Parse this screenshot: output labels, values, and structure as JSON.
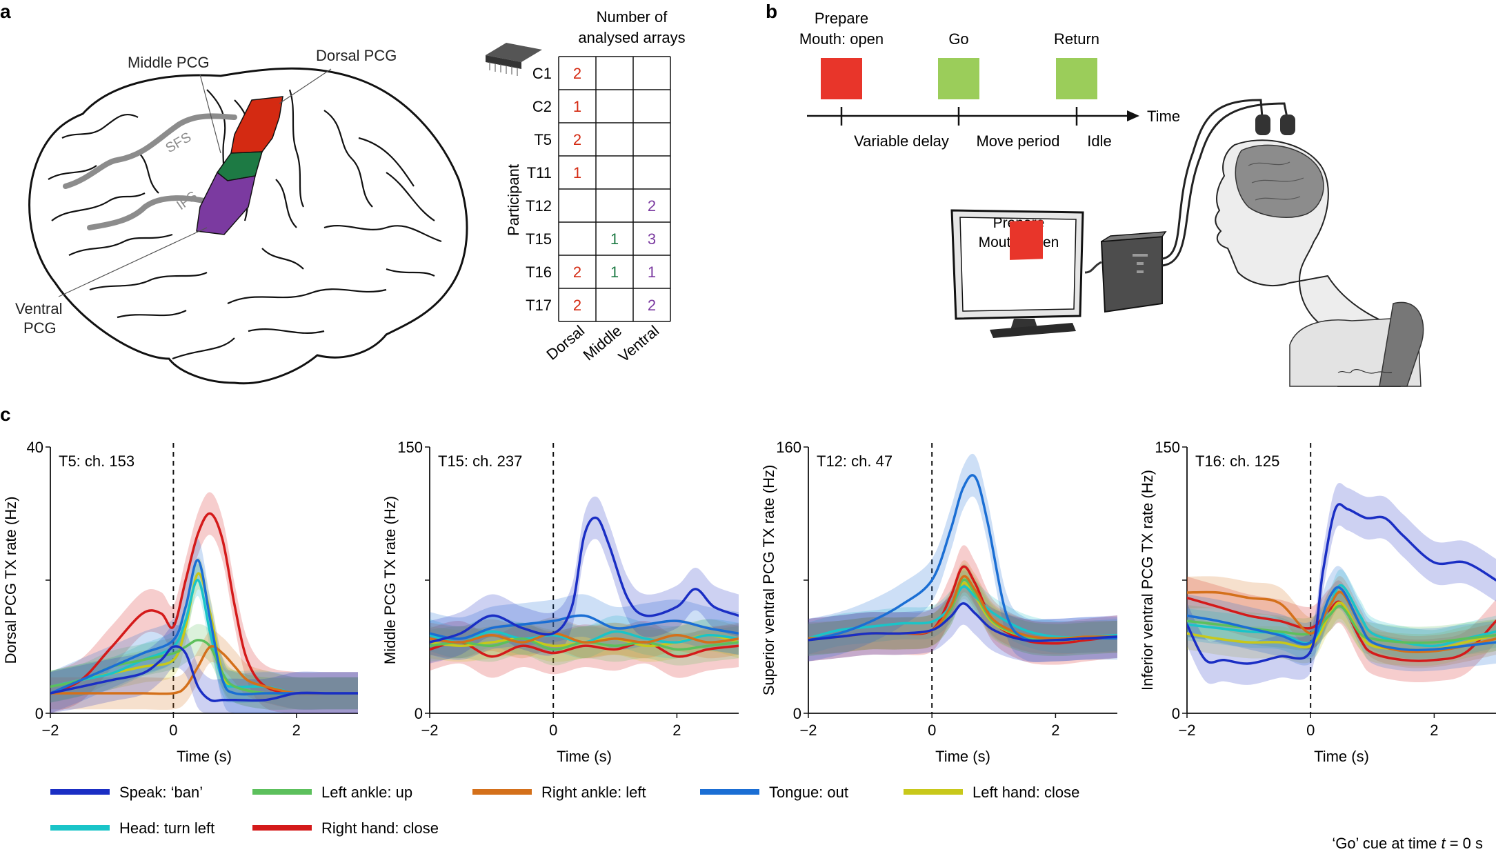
{
  "panel_letters": {
    "a": "a",
    "b": "b",
    "c": "c"
  },
  "brain": {
    "labels": {
      "middle_pcg": "Middle PCG",
      "dorsal_pcg": "Dorsal PCG",
      "sfs": "SFS",
      "ifs": "IFS",
      "ventral_pcg_line1": "Ventral",
      "ventral_pcg_line2": "PCG"
    },
    "colors": {
      "dorsal": "#d42a12",
      "middle": "#1d7a44",
      "ventral": "#7b3aa0"
    }
  },
  "arrays_table": {
    "title_line1": "Number of",
    "title_line2": "analysed arrays",
    "row_axis_label": "Participant",
    "columns": [
      "Dorsal",
      "Middle",
      "Ventral"
    ],
    "rows": [
      {
        "participant": "C1",
        "dorsal": "2",
        "middle": "",
        "ventral": ""
      },
      {
        "participant": "C2",
        "dorsal": "1",
        "middle": "",
        "ventral": ""
      },
      {
        "participant": "T5",
        "dorsal": "2",
        "middle": "",
        "ventral": ""
      },
      {
        "participant": "T11",
        "dorsal": "1",
        "middle": "",
        "ventral": ""
      },
      {
        "participant": "T12",
        "dorsal": "",
        "middle": "",
        "ventral": "2"
      },
      {
        "participant": "T15",
        "dorsal": "",
        "middle": "1",
        "ventral": "3"
      },
      {
        "participant": "T16",
        "dorsal": "2",
        "middle": "1",
        "ventral": "1"
      },
      {
        "participant": "T17",
        "dorsal": "2",
        "middle": "",
        "ventral": "2"
      }
    ]
  },
  "task": {
    "prepare_line1": "Prepare",
    "prepare_line2": "Mouth: open",
    "go": "Go",
    "return": "Return",
    "time": "Time",
    "variable_delay": "Variable delay",
    "move_period": "Move period",
    "idle": "Idle",
    "screen_line1": "Prepare",
    "screen_line2": "Mouth: open",
    "signature": "E.W.",
    "prepare_color": "#e8352a",
    "go_color": "#9bcd5a"
  },
  "chart_data": [
    {
      "type": "line",
      "title": "T5: ch. 153",
      "xlabel": "Time (s)",
      "ylabel": "Dorsal PCG TX rate (Hz)",
      "xlim": [
        -2,
        3
      ],
      "ylim": [
        0,
        40
      ],
      "xticks": [
        -2,
        0,
        2
      ],
      "yticks": [
        0,
        20,
        40
      ],
      "ytick_labels": [
        "0",
        "",
        "40"
      ],
      "series": [
        {
          "name": "Speak: ‘ban’",
          "x": [
            -2,
            -1.5,
            -1,
            -0.5,
            -0.2,
            0,
            0.2,
            0.4,
            0.6,
            0.8,
            1,
            1.5,
            2,
            2.5,
            3
          ],
          "y": [
            3,
            4,
            5,
            6,
            8,
            10,
            9,
            4,
            2,
            2,
            2,
            2,
            3,
            3,
            3
          ]
        },
        {
          "name": "Left ankle: up",
          "x": [
            -2,
            -1.5,
            -1,
            -0.5,
            0,
            0.2,
            0.4,
            0.6,
            0.8,
            1,
            1.5,
            2,
            2.5,
            3
          ],
          "y": [
            4,
            5,
            7,
            8,
            9,
            10,
            11,
            10,
            6,
            4,
            3,
            3,
            3,
            3
          ]
        },
        {
          "name": "Right ankle: left",
          "x": [
            -2,
            -1.5,
            -1,
            -0.5,
            0,
            0.2,
            0.4,
            0.6,
            0.8,
            1,
            1.2,
            1.5,
            2,
            2.5,
            3
          ],
          "y": [
            3,
            3,
            3,
            3,
            3,
            4,
            7,
            10,
            9,
            7,
            5,
            4,
            3,
            3,
            3
          ]
        },
        {
          "name": "Tongue: out",
          "x": [
            -2,
            -1.5,
            -1,
            -0.5,
            0,
            0.2,
            0.4,
            0.6,
            0.8,
            1,
            1.5,
            2,
            2.5,
            3
          ],
          "y": [
            3,
            5,
            7,
            9,
            11,
            16,
            23,
            14,
            5,
            3,
            3,
            3,
            3,
            3
          ]
        },
        {
          "name": "Left hand: close",
          "x": [
            -2,
            -1.5,
            -1,
            -0.5,
            0,
            0.2,
            0.4,
            0.6,
            0.8,
            1,
            1.5,
            2,
            2.5,
            3
          ],
          "y": [
            4,
            5,
            6,
            7,
            8,
            13,
            21,
            15,
            6,
            4,
            3,
            3,
            3,
            3
          ]
        },
        {
          "name": "Head: turn left",
          "x": [
            -2,
            -1.5,
            -1,
            -0.5,
            0,
            0.2,
            0.4,
            0.6,
            0.8,
            1,
            1.5,
            2,
            2.5,
            3
          ],
          "y": [
            4,
            5,
            6,
            8,
            10,
            14,
            20,
            12,
            5,
            4,
            4,
            3,
            3,
            3
          ]
        },
        {
          "name": "Right hand: close",
          "x": [
            -2,
            -1.5,
            -1,
            -0.5,
            -0.2,
            0,
            0.2,
            0.4,
            0.6,
            0.8,
            1,
            1.2,
            1.5,
            2,
            2.5,
            3
          ],
          "y": [
            3,
            5,
            10,
            15,
            15,
            13,
            20,
            27,
            30,
            26,
            16,
            8,
            4,
            3,
            3,
            3
          ]
        }
      ]
    },
    {
      "type": "line",
      "title": "T15: ch. 237",
      "xlabel": "Time (s)",
      "ylabel": "Middle PCG TX rate (Hz)",
      "xlim": [
        -2,
        3
      ],
      "ylim": [
        0,
        150
      ],
      "xticks": [
        -2,
        0,
        2
      ],
      "yticks": [
        0,
        75,
        150
      ],
      "ytick_labels": [
        "0",
        "",
        "150"
      ],
      "series": [
        {
          "name": "Speak: ‘ban’",
          "x": [
            -2,
            -1.5,
            -1,
            -0.5,
            0,
            0.3,
            0.5,
            0.7,
            0.9,
            1.2,
            1.5,
            2,
            2.3,
            2.6,
            3
          ],
          "y": [
            40,
            45,
            55,
            48,
            45,
            60,
            100,
            110,
            95,
            65,
            55,
            60,
            70,
            60,
            55
          ]
        },
        {
          "name": "Left ankle: up",
          "x": [
            -2,
            -1.5,
            -1,
            -0.5,
            0,
            0.5,
            1,
            1.5,
            2,
            2.5,
            3
          ],
          "y": [
            38,
            40,
            38,
            42,
            36,
            40,
            38,
            40,
            36,
            38,
            40
          ]
        },
        {
          "name": "Right ankle: left",
          "x": [
            -2,
            -1.5,
            -1,
            -0.5,
            0,
            0.5,
            1,
            1.5,
            2,
            2.5,
            3
          ],
          "y": [
            42,
            40,
            44,
            40,
            45,
            40,
            42,
            40,
            44,
            40,
            42
          ]
        },
        {
          "name": "Tongue: out",
          "x": [
            -2,
            -1.5,
            -1,
            -0.5,
            0,
            0.5,
            1,
            1.5,
            2,
            2.5,
            3
          ],
          "y": [
            45,
            42,
            48,
            50,
            52,
            55,
            48,
            50,
            52,
            48,
            45
          ]
        },
        {
          "name": "Left hand: close",
          "x": [
            -2,
            -1.5,
            -1,
            -0.5,
            0,
            0.5,
            1,
            1.5,
            2,
            2.5,
            3
          ],
          "y": [
            40,
            38,
            40,
            42,
            38,
            40,
            42,
            38,
            40,
            44,
            40
          ]
        },
        {
          "name": "Head: turn left",
          "x": [
            -2,
            -1.5,
            -1,
            -0.5,
            0,
            0.5,
            1,
            1.5,
            2,
            2.5,
            3
          ],
          "y": [
            44,
            40,
            46,
            42,
            44,
            40,
            46,
            42,
            40,
            44,
            42
          ]
        },
        {
          "name": "Right hand: close",
          "x": [
            -2,
            -1.5,
            -1,
            -0.5,
            0,
            0.5,
            1,
            1.5,
            2,
            2.5,
            3
          ],
          "y": [
            36,
            40,
            32,
            38,
            34,
            38,
            36,
            40,
            32,
            36,
            38
          ]
        }
      ]
    },
    {
      "type": "line",
      "title": "T12: ch. 47",
      "xlabel": "Time (s)",
      "ylabel": "Superior ventral PCG TX rate (Hz)",
      "xlim": [
        -2,
        3
      ],
      "ylim": [
        0,
        160
      ],
      "xticks": [
        -2,
        0,
        2
      ],
      "yticks": [
        0,
        80,
        160
      ],
      "ytick_labels": [
        "0",
        "",
        "160"
      ],
      "series": [
        {
          "name": "Speak: ‘ban’",
          "x": [
            -2,
            -1.5,
            -1,
            -0.5,
            0,
            0.3,
            0.5,
            0.7,
            1,
            1.5,
            2,
            2.5,
            3
          ],
          "y": [
            44,
            46,
            48,
            48,
            50,
            58,
            66,
            60,
            50,
            44,
            44,
            45,
            46
          ]
        },
        {
          "name": "Left ankle: up",
          "x": [
            -2,
            -1.5,
            -1,
            -0.5,
            0,
            0.3,
            0.5,
            0.7,
            1,
            1.5,
            2,
            2.5,
            3
          ],
          "y": [
            44,
            46,
            48,
            48,
            50,
            62,
            80,
            72,
            55,
            46,
            44,
            45,
            46
          ]
        },
        {
          "name": "Right ankle: left",
          "x": [
            -2,
            -1.5,
            -1,
            -0.5,
            0,
            0.3,
            0.5,
            0.7,
            1,
            1.5,
            2,
            2.5,
            3
          ],
          "y": [
            45,
            46,
            48,
            48,
            50,
            64,
            82,
            74,
            56,
            47,
            45,
            46,
            46
          ]
        },
        {
          "name": "Tongue: out",
          "x": [
            -2,
            -1.5,
            -1,
            -0.5,
            0,
            0.3,
            0.5,
            0.7,
            0.9,
            1.2,
            1.5,
            2,
            2.5,
            3
          ],
          "y": [
            44,
            48,
            55,
            65,
            80,
            110,
            135,
            142,
            115,
            60,
            45,
            44,
            45,
            45
          ]
        },
        {
          "name": "Left hand: close",
          "x": [
            -2,
            -1.5,
            -1,
            -0.5,
            0,
            0.3,
            0.5,
            0.7,
            1,
            1.5,
            2,
            2.5,
            3
          ],
          "y": [
            44,
            46,
            48,
            48,
            50,
            62,
            78,
            70,
            54,
            46,
            44,
            45,
            46
          ]
        },
        {
          "name": "Head: turn left",
          "x": [
            -2,
            -1.5,
            -1,
            -0.5,
            0,
            0.3,
            0.5,
            0.7,
            1,
            1.5,
            2,
            2.5,
            3
          ],
          "y": [
            45,
            50,
            52,
            54,
            55,
            64,
            76,
            70,
            60,
            50,
            46,
            46,
            47
          ]
        },
        {
          "name": "Right hand: close",
          "x": [
            -2,
            -1.5,
            -1,
            -0.5,
            0,
            0.3,
            0.5,
            0.7,
            1,
            1.5,
            2,
            2.5,
            3
          ],
          "y": [
            44,
            46,
            48,
            48,
            50,
            70,
            88,
            78,
            55,
            44,
            42,
            44,
            46
          ]
        }
      ]
    },
    {
      "type": "line",
      "title": "T16: ch. 125",
      "xlabel": "Time (s)",
      "ylabel": "Inferior ventral PCG TX rate (Hz)",
      "xlim": [
        -2,
        3
      ],
      "ylim": [
        0,
        150
      ],
      "xticks": [
        -2,
        0,
        2
      ],
      "yticks": [
        0,
        75,
        150
      ],
      "ytick_labels": [
        "0",
        "",
        "150"
      ],
      "series": [
        {
          "name": "Speak: ‘ban’",
          "x": [
            -2,
            -1.7,
            -1.4,
            -1,
            -0.5,
            0,
            0.2,
            0.4,
            0.6,
            0.9,
            1.2,
            1.5,
            2,
            2.5,
            3
          ],
          "y": [
            50,
            30,
            30,
            28,
            32,
            35,
            80,
            115,
            115,
            110,
            110,
            100,
            85,
            85,
            75
          ]
        },
        {
          "name": "Left ankle: up",
          "x": [
            -2,
            -1.5,
            -1,
            -0.5,
            0,
            0.3,
            0.5,
            0.8,
            1,
            1.5,
            2,
            2.5,
            3
          ],
          "y": [
            52,
            50,
            48,
            46,
            45,
            55,
            60,
            45,
            42,
            40,
            40,
            42,
            44
          ]
        },
        {
          "name": "Right ankle: left",
          "x": [
            -2,
            -1.5,
            -1,
            -0.5,
            0,
            0.3,
            0.5,
            0.8,
            1,
            1.5,
            2,
            2.5,
            3
          ],
          "y": [
            68,
            68,
            65,
            62,
            45,
            60,
            68,
            50,
            40,
            35,
            35,
            38,
            42
          ]
        },
        {
          "name": "Tongue: out",
          "x": [
            -2,
            -1.5,
            -1,
            -0.5,
            0,
            0.3,
            0.5,
            0.8,
            1,
            1.5,
            2,
            2.5,
            3
          ],
          "y": [
            55,
            52,
            48,
            44,
            40,
            65,
            70,
            50,
            40,
            36,
            36,
            38,
            40
          ]
        },
        {
          "name": "Left hand: close",
          "x": [
            -2,
            -1.5,
            -1,
            -0.5,
            0,
            0.3,
            0.5,
            0.8,
            1,
            1.5,
            2,
            2.5,
            3
          ],
          "y": [
            45,
            42,
            40,
            40,
            38,
            55,
            62,
            45,
            38,
            36,
            36,
            40,
            44
          ]
        },
        {
          "name": "Head: turn left",
          "x": [
            -2,
            -1.5,
            -1,
            -0.5,
            0,
            0.3,
            0.5,
            0.8,
            1,
            1.5,
            2,
            2.5,
            3
          ],
          "y": [
            50,
            48,
            46,
            45,
            40,
            60,
            72,
            55,
            45,
            40,
            38,
            42,
            46
          ]
        },
        {
          "name": "Right hand: close",
          "x": [
            -2,
            -1.5,
            -1,
            -0.5,
            0,
            0.3,
            0.5,
            0.8,
            1,
            1.5,
            2,
            2.5,
            3
          ],
          "y": [
            65,
            60,
            55,
            52,
            48,
            58,
            62,
            42,
            34,
            30,
            30,
            34,
            52
          ]
        }
      ]
    }
  ],
  "series_colors": {
    "Speak: ‘ban’": "#1a2ec4",
    "Left ankle: up": "#5cc05c",
    "Right ankle: left": "#d4701a",
    "Tongue: out": "#1a6ed4",
    "Left hand: close": "#c8c81a",
    "Head: turn left": "#1ac4c8",
    "Right hand: close": "#d41a1a"
  },
  "legend": [
    "Speak: ‘ban’",
    "Left ankle: up",
    "Right ankle: left",
    "Tongue: out",
    "Left hand: close",
    "Head: turn left",
    "Right hand: close"
  ],
  "caption": {
    "prefix": "‘Go’ cue at time ",
    "t": "t",
    "suffix": " = 0 s"
  }
}
